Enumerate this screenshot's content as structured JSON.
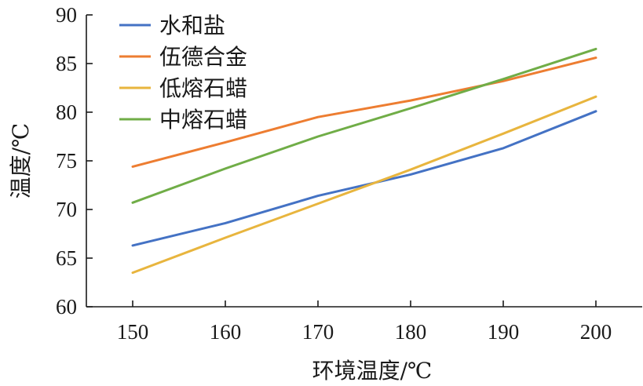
{
  "chart_data": {
    "type": "line",
    "title": "",
    "xlabel": "环境温度/℃",
    "ylabel": "温度/℃",
    "x": [
      150,
      160,
      170,
      180,
      190,
      200
    ],
    "xlim": [
      145,
      205
    ],
    "ylim": [
      60,
      90
    ],
    "yticks": [
      60,
      65,
      70,
      75,
      80,
      85,
      90
    ],
    "grid": false,
    "legend_position": "top-left",
    "series": [
      {
        "name": "水和盐",
        "color": "#4472c4",
        "values": [
          66.3,
          68.6,
          71.4,
          73.6,
          76.3,
          80.1
        ]
      },
      {
        "name": "伍德合金",
        "color": "#ed7d31",
        "values": [
          74.4,
          76.9,
          79.5,
          81.2,
          83.2,
          85.6
        ]
      },
      {
        "name": "低熔石蜡",
        "color": "#e8b53e",
        "values": [
          63.5,
          67.1,
          70.6,
          74.1,
          77.8,
          81.6
        ]
      },
      {
        "name": "中熔石蜡",
        "color": "#70ad47",
        "values": [
          70.7,
          74.2,
          77.5,
          80.4,
          83.4,
          86.5
        ]
      }
    ]
  }
}
